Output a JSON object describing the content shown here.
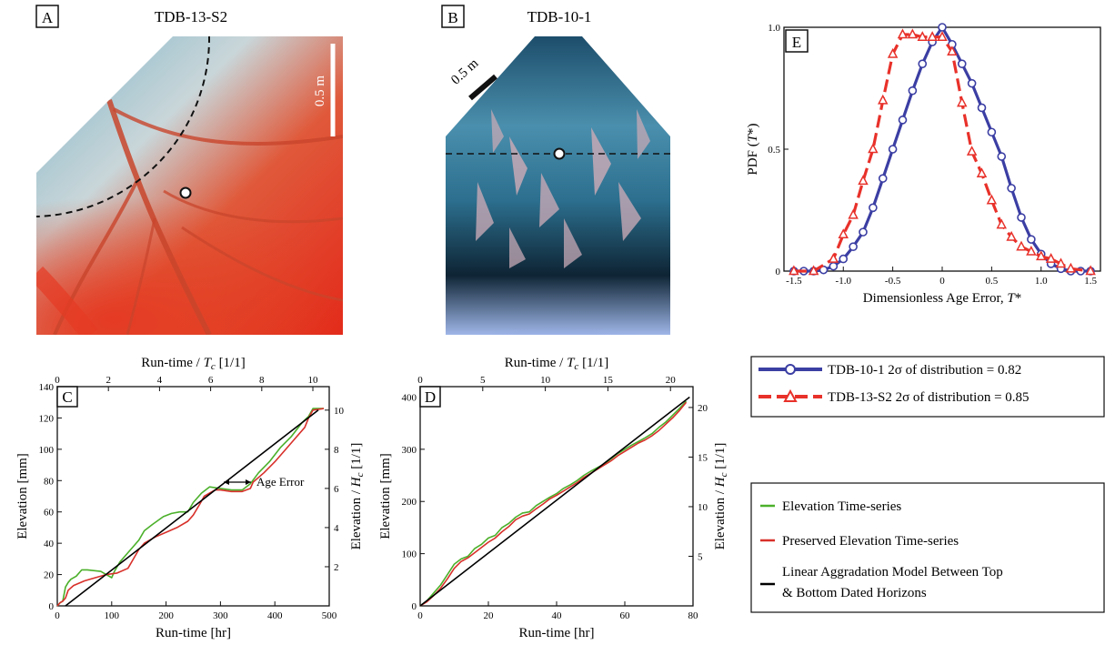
{
  "panels": {
    "A": {
      "letter": "A",
      "title": "TDB-13-S2",
      "scale_label": "0.5 m"
    },
    "B": {
      "letter": "B",
      "title": "TDB-10-1",
      "scale_label": "0.5 m"
    },
    "C": {
      "letter": "C",
      "annotation": "Age Error"
    },
    "D": {
      "letter": "D"
    },
    "E": {
      "letter": "E"
    }
  },
  "legend_top": {
    "items": [
      {
        "label": "TDB-10-1 2σ of distribution = 0.82",
        "color": "#3b3ea3",
        "style": "solid-circle"
      },
      {
        "label": "TDB-13-S2 2σ of distribution = 0.85",
        "color": "#e8312a",
        "style": "dashed-triangle"
      }
    ]
  },
  "legend_bottom": {
    "items": [
      {
        "label": "Elevation Time-series",
        "color": "#4bb02a"
      },
      {
        "label": "Preserved Elevation Time-series",
        "color": "#d8302a"
      },
      {
        "label": "Linear Aggradation Model Between Top",
        "label2": "& Bottom Dated Horizons",
        "color": "#000000"
      }
    ]
  },
  "chart_data": [
    {
      "id": "C",
      "type": "line",
      "xlabel": "Run-time [hr]",
      "ylabel": "Elevation [mm]",
      "x2label": "Run-time / T_c [1/1]",
      "y2label": "Elevation / H_c [1/1]",
      "xlim": [
        0,
        500
      ],
      "ylim": [
        0,
        140
      ],
      "xticks": [
        0,
        100,
        200,
        300,
        400,
        500
      ],
      "yticks": [
        0,
        20,
        40,
        60,
        80,
        100,
        120,
        140
      ],
      "x2lim": [
        0,
        10.64
      ],
      "x2ticks": [
        0,
        2,
        4,
        6,
        8,
        10
      ],
      "y2lim": [
        0,
        11.2
      ],
      "y2ticks": [
        2,
        4,
        6,
        8,
        10
      ],
      "series": [
        {
          "name": "Elevation Time-series",
          "color": "#4bb02a",
          "x": [
            0,
            5,
            10,
            15,
            20,
            25,
            35,
            45,
            55,
            80,
            90,
            100,
            105,
            115,
            130,
            140,
            150,
            160,
            175,
            195,
            210,
            225,
            240,
            250,
            265,
            280,
            300,
            320,
            340,
            355,
            370,
            390,
            410,
            430,
            450,
            462,
            470,
            490
          ],
          "y": [
            0,
            2,
            3,
            12,
            15,
            17,
            19,
            23,
            23,
            22,
            20,
            18,
            22,
            28,
            34,
            38,
            42,
            48,
            52,
            57,
            59,
            60,
            60,
            66,
            72,
            76,
            75,
            74,
            74,
            78,
            85,
            92,
            101,
            108,
            117,
            121,
            126,
            126
          ]
        },
        {
          "name": "Preserved Elevation Time-series",
          "color": "#d8302a",
          "x": [
            0,
            5,
            10,
            15,
            20,
            30,
            50,
            70,
            90,
            110,
            130,
            140,
            150,
            160,
            180,
            200,
            220,
            240,
            250,
            262,
            270,
            290,
            300,
            320,
            340,
            355,
            360,
            380,
            400,
            420,
            440,
            455,
            462,
            470,
            490
          ],
          "y": [
            0,
            2,
            3,
            5,
            10,
            13,
            16,
            18,
            20,
            21,
            24,
            30,
            36,
            40,
            44,
            47,
            50,
            54,
            58,
            65,
            70,
            74,
            74,
            73,
            73,
            75,
            79,
            85,
            92,
            100,
            108,
            114,
            120,
            125,
            126
          ]
        },
        {
          "name": "Linear Aggradation Model Between Top & Bottom Dated Horizons",
          "color": "#000000",
          "x": [
            15,
            480
          ],
          "y": [
            0,
            125
          ]
        }
      ]
    },
    {
      "id": "D",
      "type": "line",
      "xlabel": "Run-time [hr]",
      "ylabel": "Elevation [mm]",
      "x2label": "Run-time / T_c [1/1]",
      "y2label": "Elevation / H_c [1/1]",
      "xlim": [
        0,
        80
      ],
      "ylim": [
        0,
        420
      ],
      "xticks": [
        0,
        20,
        40,
        60,
        80
      ],
      "yticks": [
        0,
        100,
        200,
        300,
        400
      ],
      "x2lim": [
        0,
        21.8
      ],
      "x2ticks": [
        0,
        5,
        10,
        15,
        20
      ],
      "y2lim": [
        0,
        22.1
      ],
      "y2ticks": [
        5,
        10,
        15,
        20
      ],
      "series": [
        {
          "name": "Elevation Time-series",
          "color": "#4bb02a",
          "x": [
            0,
            2,
            4,
            6,
            8,
            10,
            12,
            14,
            16,
            18,
            20,
            22,
            24,
            26,
            28,
            30,
            32,
            34,
            36,
            38,
            40,
            42,
            44,
            46,
            48,
            50,
            52,
            54,
            56,
            58,
            60,
            62,
            64,
            66,
            68,
            70,
            72,
            74,
            76,
            78
          ],
          "y": [
            0,
            10,
            25,
            40,
            60,
            80,
            90,
            95,
            110,
            118,
            130,
            135,
            150,
            158,
            170,
            178,
            180,
            192,
            200,
            208,
            215,
            225,
            232,
            240,
            250,
            258,
            265,
            272,
            282,
            292,
            300,
            308,
            315,
            322,
            330,
            342,
            352,
            365,
            378,
            392
          ]
        },
        {
          "name": "Preserved Elevation Time-series",
          "color": "#d8302a",
          "x": [
            0,
            2,
            4,
            6,
            8,
            10,
            12,
            14,
            16,
            18,
            20,
            22,
            24,
            26,
            28,
            30,
            32,
            34,
            36,
            38,
            40,
            42,
            44,
            46,
            48,
            50,
            52,
            54,
            56,
            58,
            60,
            62,
            64,
            66,
            68,
            70,
            72,
            74,
            76,
            78
          ],
          "y": [
            0,
            8,
            20,
            34,
            52,
            72,
            85,
            92,
            102,
            112,
            122,
            130,
            142,
            152,
            165,
            172,
            176,
            186,
            195,
            205,
            212,
            220,
            228,
            236,
            246,
            254,
            262,
            270,
            278,
            288,
            296,
            304,
            312,
            318,
            326,
            336,
            348,
            360,
            374,
            390
          ]
        },
        {
          "name": "Linear Aggradation Model Between Top & Bottom Dated Horizons",
          "color": "#000000",
          "x": [
            0,
            79
          ],
          "y": [
            0,
            400
          ]
        }
      ]
    },
    {
      "id": "E",
      "type": "line",
      "xlabel": "Dimensionless Age Error, T*",
      "ylabel": "PDF (T*)",
      "xlim": [
        -1.6,
        1.6
      ],
      "ylim": [
        0,
        1.0
      ],
      "xticks": [
        -1.5,
        -1.0,
        -0.5,
        0,
        0.5,
        1.0,
        1.5
      ],
      "xticklabels": [
        "-1.5",
        "-1.0",
        "-0.5",
        "0",
        "0.5",
        "1.0",
        "1.5"
      ],
      "yticks": [
        0,
        0.5,
        1.0
      ],
      "yticklabels": [
        "0",
        "0.5",
        "1.0"
      ],
      "series": [
        {
          "name": "TDB-10-1 2σ of distribution = 0.82",
          "color": "#3b3ea3",
          "x": [
            -1.5,
            -1.4,
            -1.3,
            -1.2,
            -1.1,
            -1.0,
            -0.9,
            -0.8,
            -0.7,
            -0.6,
            -0.5,
            -0.4,
            -0.3,
            -0.2,
            -0.1,
            0,
            0.1,
            0.2,
            0.3,
            0.4,
            0.5,
            0.6,
            0.7,
            0.8,
            0.9,
            1.0,
            1.1,
            1.2,
            1.3,
            1.4,
            1.5
          ],
          "y": [
            0,
            0,
            0,
            0.005,
            0.02,
            0.05,
            0.1,
            0.16,
            0.26,
            0.38,
            0.5,
            0.62,
            0.74,
            0.85,
            0.94,
            1.0,
            0.93,
            0.85,
            0.77,
            0.67,
            0.57,
            0.47,
            0.34,
            0.22,
            0.13,
            0.07,
            0.03,
            0.01,
            0,
            0,
            0
          ]
        },
        {
          "name": "TDB-13-S2 2σ of distribution = 0.85",
          "color": "#e8312a",
          "x": [
            -1.5,
            -1.3,
            -1.1,
            -1.0,
            -0.9,
            -0.8,
            -0.7,
            -0.6,
            -0.5,
            -0.4,
            -0.3,
            -0.2,
            -0.1,
            0,
            0.1,
            0.2,
            0.3,
            0.4,
            0.5,
            0.6,
            0.7,
            0.8,
            0.9,
            1.0,
            1.1,
            1.2,
            1.3,
            1.5
          ],
          "y": [
            0,
            0,
            0.05,
            0.15,
            0.23,
            0.37,
            0.5,
            0.7,
            0.89,
            0.97,
            0.97,
            0.96,
            0.96,
            0.96,
            0.9,
            0.69,
            0.49,
            0.4,
            0.29,
            0.19,
            0.14,
            0.1,
            0.08,
            0.06,
            0.05,
            0.03,
            0.01,
            0
          ]
        }
      ]
    }
  ]
}
